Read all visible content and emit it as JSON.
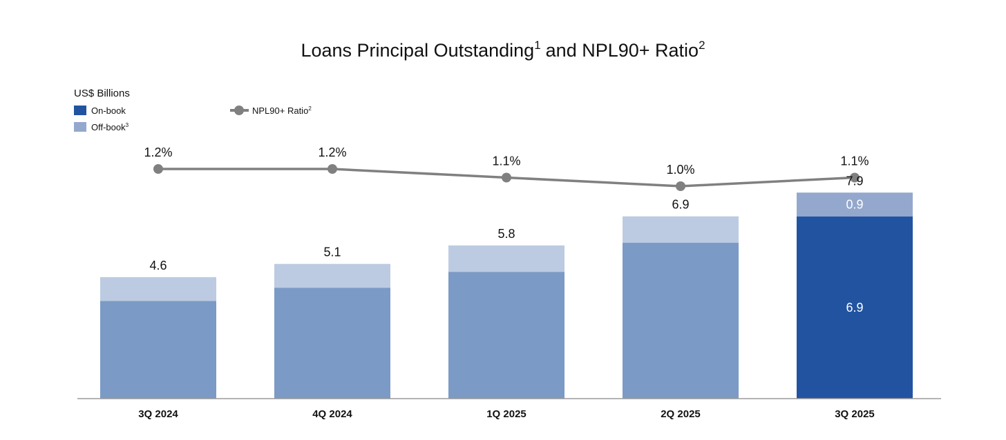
{
  "chart_data": {
    "type": "bar",
    "stacked": true,
    "title": "Loans Principal Outstanding",
    "title_sup": "1",
    "title_middle": "and NPL90+ Ratio",
    "title_sup2": "2",
    "ylabel": "US$ Billions",
    "categories": [
      "3Q 2024",
      "4Q 2024",
      "1Q 2025",
      "2Q 2025",
      "3Q 2025"
    ],
    "series": [
      {
        "name": "On-book",
        "name_sup": "",
        "values": [
          3.7,
          4.2,
          4.8,
          5.9,
          6.9
        ],
        "color": "#7b9ac6",
        "highlight_color": "#2153a1"
      },
      {
        "name": "Off-book",
        "name_sup": "3",
        "values": [
          0.9,
          0.9,
          1.0,
          1.0,
          0.9
        ],
        "color": "#bccbe1",
        "highlight_color": "#93a8cc"
      }
    ],
    "totals": [
      "4.6",
      "5.1",
      "5.8",
      "6.9",
      "7.9"
    ],
    "highlight_index": 4,
    "highlight_labels": {
      "on_book": "6.9",
      "off_book": "0.9"
    },
    "line_series": {
      "name": "NPL90+ Ratio",
      "name_sup": "2",
      "values": [
        1.2,
        1.2,
        1.1,
        1.0,
        1.1
      ],
      "labels": [
        "1.2%",
        "1.2%",
        "1.1%",
        "1.0%",
        "1.1%"
      ],
      "color": "#808080"
    },
    "ylim": [
      0,
      8.7
    ],
    "grid": false,
    "legend_position": "top-left"
  }
}
